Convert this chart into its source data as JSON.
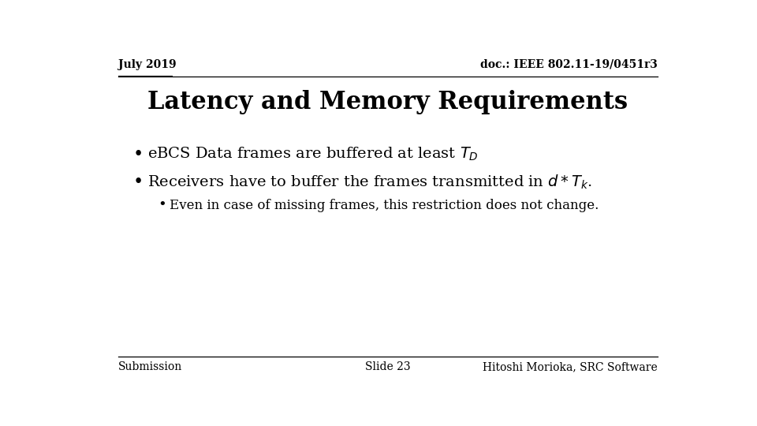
{
  "bg_color": "#ffffff",
  "top_left_text": "July 2019",
  "top_right_text": "doc.: IEEE 802.11-19/0451r3",
  "title": "Latency and Memory Requirements",
  "subbullet": "Even in case of missing frames, this restriction does not change.",
  "footer_left": "Submission",
  "footer_center": "Slide 23",
  "footer_right": "Hitoshi Morioka, SRC Software",
  "text_color": "#000000",
  "line_color": "#000000",
  "title_fontsize": 22,
  "header_fontsize": 10,
  "bullet_fontsize": 14,
  "subbullet_fontsize": 12,
  "footer_fontsize": 10
}
